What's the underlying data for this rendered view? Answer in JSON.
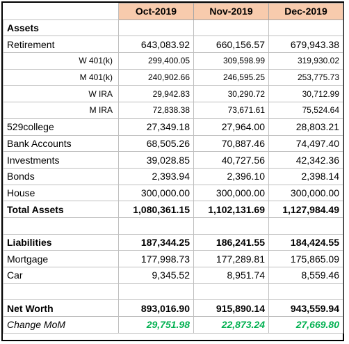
{
  "months": [
    "Oct-2019",
    "Nov-2019",
    "Dec-2019"
  ],
  "colors": {
    "header_fill": "#f8cbad",
    "change_green": "#00b050",
    "grid": "#bfbfbf"
  },
  "rows": {
    "assets": "Assets",
    "retirement": {
      "label": "Retirement",
      "values": [
        "643,083.92",
        "660,156.57",
        "679,943.38"
      ]
    },
    "w401k": {
      "label": "W 401(k)",
      "values": [
        "299,400.05",
        "309,598.99",
        "319,930.02"
      ]
    },
    "m401k": {
      "label": "M 401(k)",
      "values": [
        "240,902.66",
        "246,595.25",
        "253,775.73"
      ]
    },
    "wira": {
      "label": "W IRA",
      "values": [
        "29,942.83",
        "30,290.72",
        "30,712.99"
      ]
    },
    "mira": {
      "label": "M IRA",
      "values": [
        "72,838.38",
        "73,671.61",
        "75,524.64"
      ]
    },
    "college529": {
      "label": "529college",
      "values": [
        "27,349.18",
        "27,964.00",
        "28,803.21"
      ]
    },
    "bank": {
      "label": "Bank Accounts",
      "values": [
        "68,505.26",
        "70,887.46",
        "74,497.40"
      ]
    },
    "investments": {
      "label": "Investments",
      "values": [
        "39,028.85",
        "40,727.56",
        "42,342.36"
      ]
    },
    "bonds": {
      "label": "Bonds",
      "values": [
        "2,393.94",
        "2,396.10",
        "2,398.14"
      ]
    },
    "house": {
      "label": "House",
      "values": [
        "300,000.00",
        "300,000.00",
        "300,000.00"
      ]
    },
    "total_assets": {
      "label": "Total Assets",
      "values": [
        "1,080,361.15",
        "1,102,131.69",
        "1,127,984.49"
      ]
    },
    "liabilities": {
      "label": "Liabilities",
      "values": [
        "187,344.25",
        "186,241.55",
        "184,424.55"
      ]
    },
    "mortgage": {
      "label": "Mortgage",
      "values": [
        "177,998.73",
        "177,289.81",
        "175,865.09"
      ]
    },
    "car": {
      "label": "Car",
      "values": [
        "9,345.52",
        "8,951.74",
        "8,559.46"
      ]
    },
    "net_worth": {
      "label": "Net Worth",
      "values": [
        "893,016.90",
        "915,890.14",
        "943,559.94"
      ]
    },
    "change_mom": {
      "label": "Change MoM",
      "values": [
        "29,751.98",
        "22,873.24",
        "27,669.80"
      ]
    }
  }
}
